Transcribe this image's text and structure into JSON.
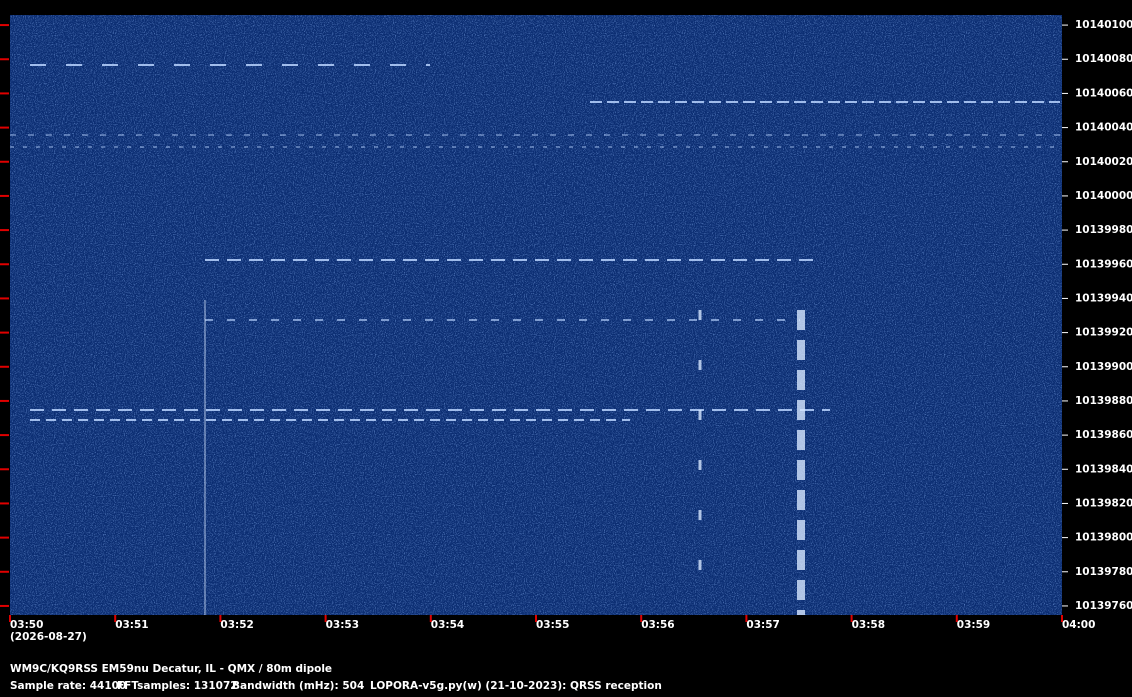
{
  "chart_data": {
    "type": "spectrogram",
    "date": "(2026-08-27)",
    "station": "WM9C/KQ9RSS EM59nu Decatur, IL - QMX / 80m dipole",
    "footer": [
      "Sample rate: 44100",
      "FFTsamples: 131072",
      "Bandwidth (mHz): 504",
      "LOPORA-v5g.py(w) (21-10-2023): QRSS reception"
    ],
    "xticks": [
      "03:50",
      "03:51",
      "03:52",
      "03:53",
      "03:54",
      "03:55",
      "03:56",
      "03:57",
      "03:58",
      "03:59",
      "04:00"
    ],
    "ylim": [
      10139754.7,
      10140105.9
    ],
    "yticks": [
      10140100,
      10140080,
      10140060,
      10140040,
      10140020,
      10140000,
      10139980,
      10139960,
      10139940,
      10139920,
      10139900,
      10139880,
      10139860,
      10139840,
      10139820,
      10139800,
      10139780,
      10139760
    ],
    "tick_color": "#e00000"
  }
}
